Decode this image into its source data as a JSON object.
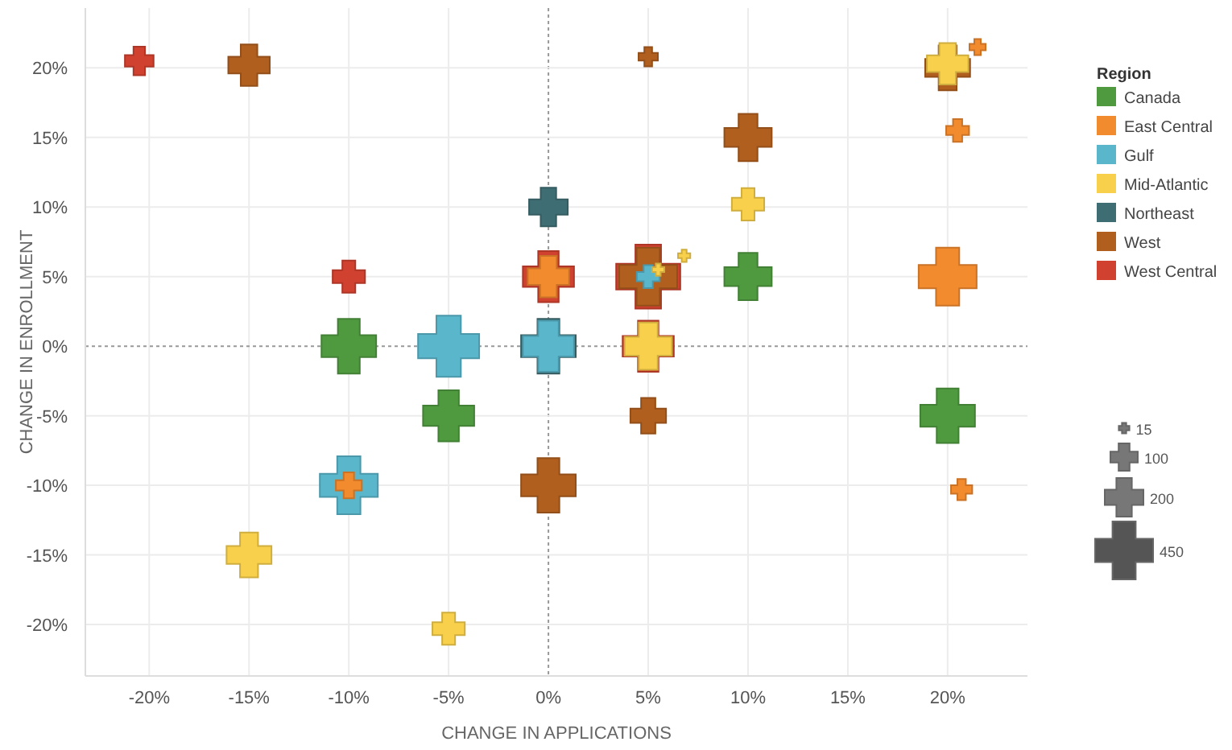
{
  "chart_data": {
    "type": "bubble",
    "xlabel": "CHANGE IN APPLICATIONS",
    "ylabel": "CHANGE IN ENROLLMENT",
    "legend_title": "Region",
    "legend": "right",
    "grid": true,
    "marker": "cross",
    "xlim": [
      -23.2,
      24
    ],
    "ylim": [
      -23.7,
      24.3
    ],
    "xticks": [
      {
        "value": -20,
        "label": "-20%"
      },
      {
        "value": -15,
        "label": "-15%"
      },
      {
        "value": -10,
        "label": "-10%"
      },
      {
        "value": -5,
        "label": "-5%"
      },
      {
        "value": 0,
        "label": "0%"
      },
      {
        "value": 5,
        "label": "5%"
      },
      {
        "value": 10,
        "label": "10%"
      },
      {
        "value": 15,
        "label": "15%"
      },
      {
        "value": 20,
        "label": "20%"
      }
    ],
    "yticks": [
      {
        "value": -20,
        "label": "-20%"
      },
      {
        "value": -15,
        "label": "-15%"
      },
      {
        "value": -10,
        "label": "-10%"
      },
      {
        "value": -5,
        "label": "-5%"
      },
      {
        "value": 0,
        "label": "0%"
      },
      {
        "value": 5,
        "label": "5%"
      },
      {
        "value": 10,
        "label": "10%"
      },
      {
        "value": 15,
        "label": "15%"
      },
      {
        "value": 20,
        "label": "20%"
      }
    ],
    "size_legend": [
      15,
      100,
      200,
      450
    ],
    "series": [
      {
        "name": "Canada",
        "color": "#4f9a3f",
        "x": [
          -10,
          -5,
          10,
          20
        ],
        "values": [
          0,
          -5,
          5,
          -5
        ],
        "sizes": [
          400,
          350,
          300,
          400
        ]
      },
      {
        "name": "East Central",
        "color": "#f28a2e",
        "x": [
          0,
          -10,
          20,
          20.5,
          21.5,
          20.7
        ],
        "values": [
          5,
          -10,
          5,
          15.5,
          21.5,
          -10.3
        ],
        "sizes": [
          230,
          90,
          450,
          70,
          35,
          60
        ]
      },
      {
        "name": "Gulf",
        "color": "#5ab6cb",
        "x": [
          -5,
          0,
          -10,
          5
        ],
        "values": [
          0,
          0,
          -10,
          5
        ],
        "sizes": [
          500,
          350,
          450,
          70
        ]
      },
      {
        "name": "Mid-Atlantic",
        "color": "#f8d04b",
        "x": [
          5,
          -15,
          -5,
          10,
          20,
          6.8,
          5.5
        ],
        "values": [
          0,
          -15,
          -20.3,
          10.2,
          20.3,
          6.5,
          5.5
        ],
        "sizes": [
          300,
          270,
          140,
          140,
          230,
          20,
          20
        ]
      },
      {
        "name": "Northeast",
        "color": "#3e6e74",
        "x": [
          0,
          0
        ],
        "values": [
          10,
          0
        ],
        "sizes": [
          200,
          400
        ]
      },
      {
        "name": "West",
        "color": "#b05f1e",
        "x": [
          -15,
          5,
          10,
          5,
          5,
          0,
          20
        ],
        "values": [
          20.2,
          20.8,
          15,
          5,
          -5,
          -10,
          20
        ],
        "sizes": [
          230,
          50,
          300,
          450,
          170,
          400,
          270
        ]
      },
      {
        "name": "West Central",
        "color": "#d0412f",
        "x": [
          -20.5,
          -10,
          0,
          5,
          5
        ],
        "values": [
          20.5,
          5,
          5,
          5,
          0
        ],
        "sizes": [
          110,
          140,
          350,
          550,
          350
        ]
      }
    ]
  }
}
